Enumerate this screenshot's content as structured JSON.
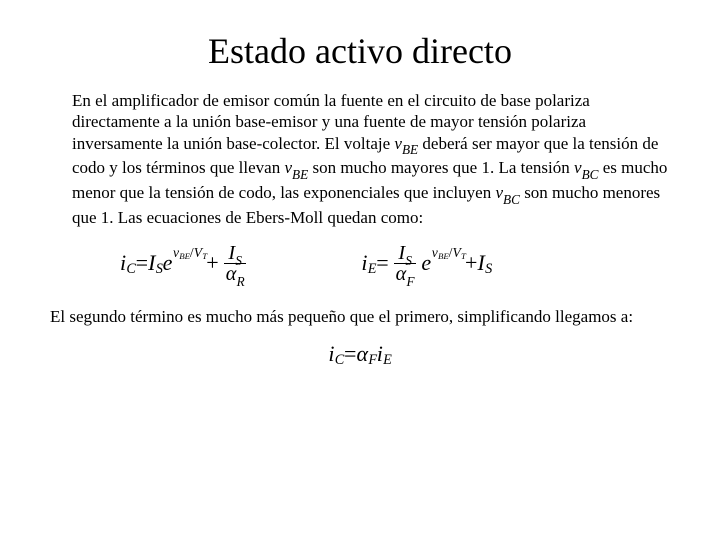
{
  "title": "Estado activo directo",
  "para1_a": "En el amplificador de emisor común la fuente en el circuito de base polariza directamente a la unión base-emisor y una fuente de mayor tensión polariza inversamente la unión base-colector. El voltaje ",
  "vbe_v": "v",
  "vbe_sub": "BE",
  "para1_b": " deberá ser mayor que la tensión de codo y los términos que llevan ",
  "para1_c": " son mucho mayores que 1. La tensión ",
  "vbc_v": "v",
  "vbc_sub": "BC",
  "para1_d": " es mucho menor que la tensión de codo, las exponenciales que incluyen ",
  "para1_e": " son mucho menores que 1. Las ecuaciones de Ebers-Moll quedan como:",
  "para2": "El segundo término es mucho más pequeño que el primero, simplificando llegamos a:",
  "eq": {
    "iC": "i",
    "iC_sub": "C",
    "iE": "i",
    "iE_sub": "E",
    "IS": "I",
    "IS_sub": "S",
    "e": "e",
    "exp_num": "v",
    "exp_num_sub": "BE",
    "exp_slash": "/",
    "exp_den": "V",
    "exp_den_sub": "T",
    "plus": " + ",
    "eqs": " = ",
    "alpha": "α",
    "aR_sub": "R",
    "aF_sub": "F"
  },
  "colors": {
    "text": "#000000",
    "bg": "#ffffff"
  },
  "fontsize": {
    "title": 36,
    "body": 17,
    "eq": 22
  }
}
